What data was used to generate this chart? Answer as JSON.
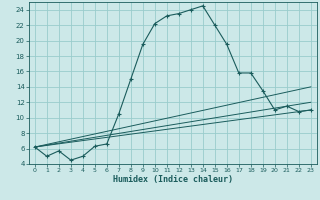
{
  "xlabel": "Humidex (Indice chaleur)",
  "bg_color": "#cce8e8",
  "grid_color": "#99cccc",
  "line_color": "#1a5c5c",
  "xlim": [
    -0.5,
    23.5
  ],
  "ylim": [
    4,
    25
  ],
  "xticks": [
    0,
    1,
    2,
    3,
    4,
    5,
    6,
    7,
    8,
    9,
    10,
    11,
    12,
    13,
    14,
    15,
    16,
    17,
    18,
    19,
    20,
    21,
    22,
    23
  ],
  "yticks": [
    4,
    6,
    8,
    10,
    12,
    14,
    16,
    18,
    20,
    22,
    24
  ],
  "curve1_x": [
    0,
    1,
    2,
    3,
    4,
    5,
    6,
    7,
    8,
    9,
    10,
    11,
    12,
    13,
    14,
    15,
    16,
    17,
    18,
    19,
    20,
    21,
    22,
    23
  ],
  "curve1_y": [
    6.2,
    5.0,
    5.7,
    4.5,
    5.0,
    6.3,
    6.6,
    10.5,
    15.0,
    19.5,
    22.2,
    23.2,
    23.5,
    24.0,
    24.5,
    22.0,
    19.5,
    15.8,
    15.8,
    13.5,
    11.0,
    11.5,
    10.8,
    11.0
  ],
  "curve2_x": [
    0,
    23
  ],
  "curve2_y": [
    6.2,
    14.0
  ],
  "curve3_x": [
    0,
    23
  ],
  "curve3_y": [
    6.2,
    12.0
  ],
  "curve4_x": [
    0,
    23
  ],
  "curve4_y": [
    6.2,
    11.0
  ]
}
